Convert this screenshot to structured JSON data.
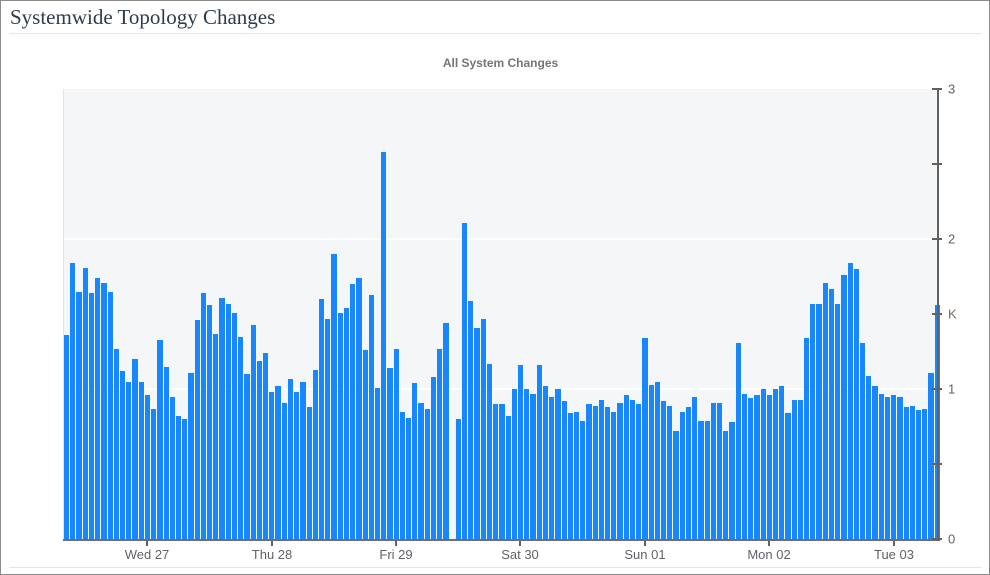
{
  "page": {
    "title": "Systemwide Topology Changes"
  },
  "colors": {
    "bar": "#1787fb",
    "plot_background": "#f5f6f8",
    "gridline": "#ffffff",
    "axis": "#616161",
    "tick_text": "#5f6368",
    "chart_title_text": "#757575",
    "page_title_text": "#2f3b4c"
  },
  "chart_data": {
    "type": "bar",
    "title": "All System Changes",
    "xlabel": "",
    "ylabel": "",
    "unit": "K",
    "ylim": [
      0,
      3
    ],
    "grid": "horizontal",
    "gridlines_at": [
      1,
      2
    ],
    "legend": "none",
    "y_axis_side": "right",
    "y_ticks": [
      {
        "v": 3,
        "label": "3"
      },
      {
        "v": 2.5,
        "label": ""
      },
      {
        "v": 2,
        "label": "2"
      },
      {
        "v": 1.5,
        "label": "K",
        "unit": true
      },
      {
        "v": 1,
        "label": "1"
      },
      {
        "v": 0.5,
        "label": ""
      },
      {
        "v": 0,
        "label": "0"
      }
    ],
    "x_ticks": [
      {
        "label": "Wed 27",
        "pos": 0.096
      },
      {
        "label": "Thu 28",
        "pos": 0.2389
      },
      {
        "label": "Fri 29",
        "pos": 0.3806
      },
      {
        "label": "Sat 30",
        "pos": 0.5223
      },
      {
        "label": "Sun 01",
        "pos": 0.6651
      },
      {
        "label": "Mon 02",
        "pos": 0.8069
      },
      {
        "label": "Tue 03",
        "pos": 0.9497
      }
    ],
    "values_unit": "thousands of changes",
    "values": [
      1.36,
      1.84,
      1.65,
      1.81,
      1.64,
      1.74,
      1.71,
      1.65,
      1.27,
      1.12,
      1.05,
      1.2,
      1.05,
      0.96,
      0.87,
      1.33,
      1.15,
      0.95,
      0.82,
      0.8,
      1.11,
      1.46,
      1.64,
      1.56,
      1.37,
      1.61,
      1.57,
      1.51,
      1.35,
      1.1,
      1.43,
      1.19,
      1.24,
      0.98,
      1.02,
      0.91,
      1.07,
      0.98,
      1.05,
      0.88,
      1.13,
      1.6,
      1.47,
      1.9,
      1.51,
      1.54,
      1.7,
      1.74,
      1.26,
      1.63,
      1.01,
      2.58,
      1.14,
      1.27,
      0.85,
      0.81,
      1.04,
      0.91,
      0.87,
      1.08,
      1.27,
      1.44,
      0,
      0.8,
      2.11,
      1.59,
      1.41,
      1.47,
      1.17,
      0.9,
      0.9,
      0.82,
      1.0,
      1.16,
      1.0,
      0.97,
      1.16,
      1.02,
      0.95,
      1.0,
      0.92,
      0.84,
      0.85,
      0.79,
      0.9,
      0.89,
      0.93,
      0.88,
      0.85,
      0.91,
      0.96,
      0.93,
      0.9,
      1.34,
      1.03,
      1.05,
      0.92,
      0.89,
      0.72,
      0.85,
      0.88,
      0.95,
      0.79,
      0.79,
      0.91,
      0.91,
      0.72,
      0.78,
      1.31,
      0.97,
      0.94,
      0.96,
      1.0,
      0.96,
      1.0,
      1.02,
      0.84,
      0.93,
      0.93,
      1.34,
      1.57,
      1.57,
      1.71,
      1.67,
      1.57,
      1.76,
      1.84,
      1.8,
      1.31,
      1.09,
      1.02,
      0.97,
      0.95,
      0.96,
      0.95,
      0.88,
      0.89,
      0.86,
      0.87,
      1.11,
      1.56
    ]
  }
}
